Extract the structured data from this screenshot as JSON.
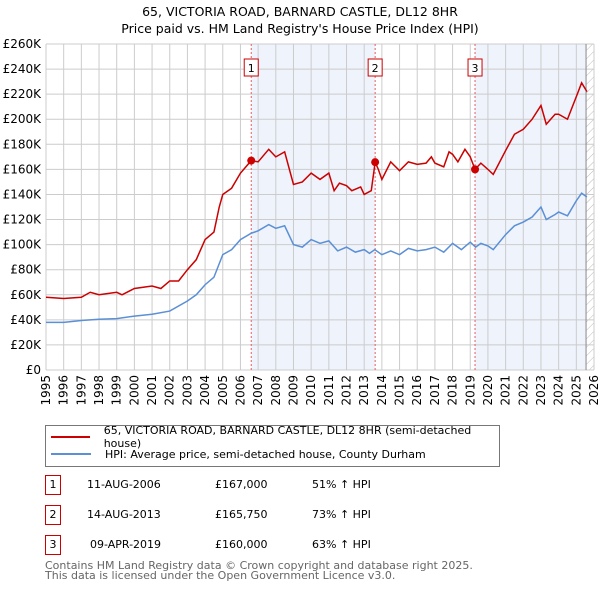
{
  "chart_data": {
    "type": "line",
    "title": "65, VICTORIA ROAD, BARNARD CASTLE, DL12 8HR",
    "subtitle": "Price paid vs. HM Land Registry's House Price Index (HPI)",
    "xlim": [
      1995,
      2026
    ],
    "ylim": [
      0,
      260000
    ],
    "yticks": [
      0,
      20000,
      40000,
      60000,
      80000,
      100000,
      120000,
      140000,
      160000,
      180000,
      200000,
      220000,
      240000,
      260000
    ],
    "ytick_labels": [
      "£0",
      "£20K",
      "£40K",
      "£60K",
      "£80K",
      "£100K",
      "£120K",
      "£140K",
      "£160K",
      "£180K",
      "£200K",
      "£220K",
      "£240K",
      "£260K"
    ],
    "xtick_labels": [
      "1995",
      "1996",
      "1997",
      "1998",
      "1999",
      "2000",
      "2001",
      "2002",
      "2003",
      "2004",
      "2005",
      "2006",
      "2007",
      "2008",
      "2009",
      "2010",
      "2011",
      "2012",
      "2013",
      "2014",
      "2015",
      "2016",
      "2017",
      "2018",
      "2019",
      "2020",
      "2021",
      "2022",
      "2023",
      "2024",
      "2025",
      "2026"
    ],
    "grid": true,
    "series": [
      {
        "name": "65, VICTORIA ROAD, BARNARD CASTLE, DL12 8HR (semi-detached house)",
        "color": "#cc0000",
        "x": [
          1995,
          1996,
          1997,
          1997.5,
          1998,
          1999,
          1999.3,
          2000,
          2000.5,
          2001,
          2001.5,
          2002,
          2002.5,
          2003,
          2003.5,
          2004,
          2004.5,
          2004.8,
          2005,
          2005.5,
          2006,
          2006.61,
          2007,
          2007.6,
          2008,
          2008.5,
          2009,
          2009.5,
          2010,
          2010.5,
          2011,
          2011.3,
          2011.6,
          2012,
          2012.3,
          2012.8,
          2013,
          2013.4,
          2013.62,
          2013.8,
          2014,
          2014.5,
          2015,
          2015.5,
          2016,
          2016.5,
          2016.8,
          2017,
          2017.5,
          2017.8,
          2018,
          2018.3,
          2018.7,
          2019,
          2019.27,
          2019.6,
          2020,
          2020.3,
          2021,
          2021.5,
          2022,
          2022.5,
          2023,
          2023.3,
          2023.8,
          2024,
          2024.5,
          2025,
          2025.3,
          2025.6
        ],
        "y": [
          58,
          57,
          58,
          62,
          60,
          62,
          60,
          65,
          66,
          67,
          65,
          71,
          71,
          80,
          88,
          104,
          110,
          130,
          140,
          145,
          157,
          167,
          166,
          176,
          170,
          174,
          148,
          150,
          157,
          152,
          157,
          143,
          149,
          147,
          143,
          146,
          140,
          143,
          165.75,
          160,
          152,
          166,
          159,
          166,
          164,
          165,
          170,
          165,
          162,
          174,
          172,
          166,
          176,
          170,
          160,
          165,
          160,
          156,
          175,
          188,
          192,
          200,
          211,
          196,
          204,
          204,
          200,
          218,
          229,
          222
        ]
      },
      {
        "name": "HPI: Average price, semi-detached house, County Durham",
        "color": "#5b8fd6",
        "x": [
          1995,
          1996,
          1997,
          1998,
          1999,
          2000,
          2001,
          2002,
          2003,
          2003.5,
          2004,
          2004.5,
          2005,
          2005.5,
          2006,
          2006.6,
          2007,
          2007.6,
          2008,
          2008.5,
          2009,
          2009.5,
          2010,
          2010.5,
          2011,
          2011.5,
          2012,
          2012.5,
          2013,
          2013.3,
          2013.6,
          2014,
          2014.5,
          2015,
          2015.5,
          2016,
          2016.5,
          2017,
          2017.5,
          2018,
          2018.5,
          2019,
          2019.3,
          2019.6,
          2020,
          2020.3,
          2021,
          2021.5,
          2022,
          2022.5,
          2023,
          2023.3,
          2023.8,
          2024,
          2024.5,
          2025,
          2025.3,
          2025.6
        ],
        "y": [
          38,
          38,
          39.5,
          40.5,
          41,
          43,
          44.5,
          47,
          55,
          60,
          68,
          74,
          92,
          96,
          104,
          109,
          111,
          116,
          113,
          115,
          100,
          98,
          104,
          101,
          103,
          95,
          98,
          94,
          96,
          93,
          96,
          92,
          95,
          92,
          97,
          95,
          96,
          98,
          94,
          101,
          96,
          102,
          98,
          101,
          99,
          96,
          108,
          115,
          118,
          122,
          130,
          120,
          124,
          126,
          123,
          135,
          141,
          138
        ]
      }
    ],
    "y_units": "thousands GBP",
    "sales": [
      {
        "id": "1",
        "date": "11-AUG-2006",
        "x": 2006.61,
        "price": "£167,000",
        "value": 167,
        "hpi": "51% ↑ HPI"
      },
      {
        "id": "2",
        "date": "14-AUG-2013",
        "x": 2013.62,
        "price": "£165,750",
        "value": 165.75,
        "hpi": "73% ↑ HPI"
      },
      {
        "id": "3",
        "date": "09-APR-2019",
        "x": 2019.27,
        "price": "£160,000",
        "value": 160,
        "hpi": "63% ↑ HPI"
      }
    ],
    "legend_placement": "below"
  },
  "footer": {
    "line1": "Contains HM Land Registry data © Crown copyright and database right 2025.",
    "line2": "This data is licensed under the Open Government Licence v3.0."
  }
}
